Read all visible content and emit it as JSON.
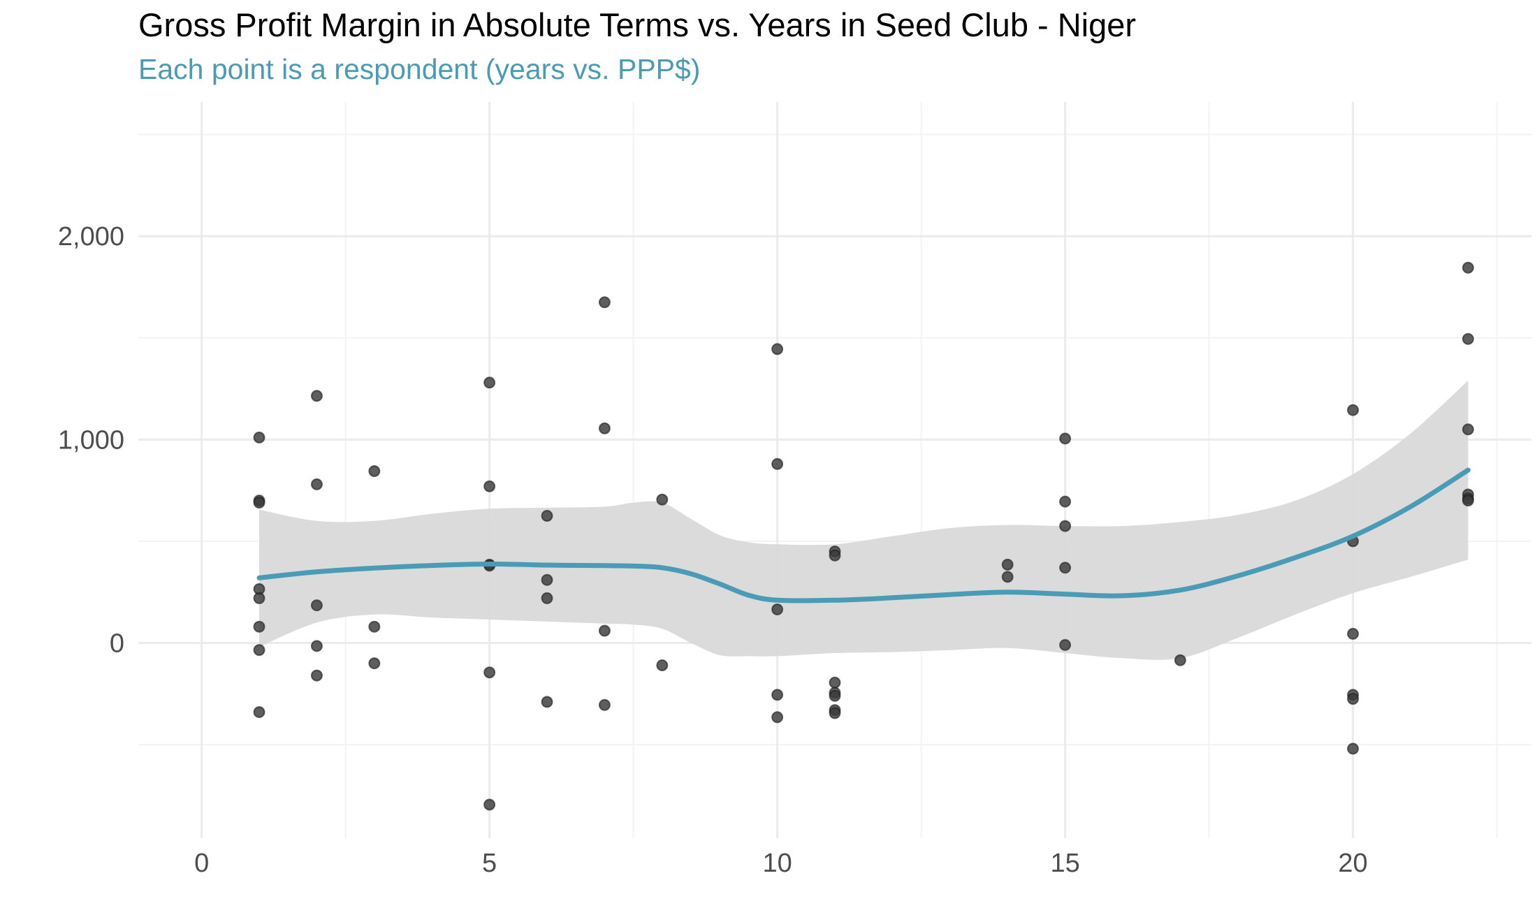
{
  "chart_data": {
    "type": "scatter",
    "title": "Gross Profit Margin in Absolute Terms vs. Years in Seed Club - Niger",
    "subtitle": "Each point is a respondent (years vs. PPP$)",
    "xlabel": "",
    "ylabel": "",
    "xlim": [
      -1.1,
      23.1
    ],
    "ylim": [
      -960,
      2660
    ],
    "x_ticks": [
      0,
      5,
      10,
      15,
      20
    ],
    "x_tick_labels": [
      "0",
      "5",
      "10",
      "15",
      "20"
    ],
    "y_ticks": [
      0,
      1000,
      2000
    ],
    "y_tick_labels": [
      "0",
      "1,000",
      "2,000"
    ],
    "grid": true,
    "legend": "none",
    "colors": {
      "subtitle": "#4a9bb5",
      "points": "#3a3a3a",
      "smooth_line": "#4a9bb5",
      "ribbon": "#d9d9d9",
      "grid_major": "#ebebeb",
      "grid_minor": "#f3f3f3"
    },
    "points": [
      {
        "x": 1,
        "y": 1010
      },
      {
        "x": 1,
        "y": 700
      },
      {
        "x": 1,
        "y": 690
      },
      {
        "x": 1,
        "y": 265
      },
      {
        "x": 1,
        "y": 220
      },
      {
        "x": 1,
        "y": 80
      },
      {
        "x": 1,
        "y": -35
      },
      {
        "x": 1,
        "y": -340
      },
      {
        "x": 2,
        "y": 1215
      },
      {
        "x": 2,
        "y": 780
      },
      {
        "x": 2,
        "y": 185
      },
      {
        "x": 2,
        "y": -15
      },
      {
        "x": 2,
        "y": -160
      },
      {
        "x": 3,
        "y": 845
      },
      {
        "x": 3,
        "y": 80
      },
      {
        "x": 3,
        "y": -100
      },
      {
        "x": 5,
        "y": 1280
      },
      {
        "x": 5,
        "y": 770
      },
      {
        "x": 5,
        "y": 385
      },
      {
        "x": 5,
        "y": 380
      },
      {
        "x": 5,
        "y": -145
      },
      {
        "x": 5,
        "y": -795
      },
      {
        "x": 6,
        "y": 625
      },
      {
        "x": 6,
        "y": 310
      },
      {
        "x": 6,
        "y": 220
      },
      {
        "x": 6,
        "y": -290
      },
      {
        "x": 7,
        "y": 1675
      },
      {
        "x": 7,
        "y": 1055
      },
      {
        "x": 7,
        "y": 60
      },
      {
        "x": 7,
        "y": -305
      },
      {
        "x": 8,
        "y": 705
      },
      {
        "x": 8,
        "y": -110
      },
      {
        "x": 10,
        "y": 1445
      },
      {
        "x": 10,
        "y": 880
      },
      {
        "x": 10,
        "y": 165
      },
      {
        "x": 10,
        "y": -255
      },
      {
        "x": 10,
        "y": -365
      },
      {
        "x": 11,
        "y": 450
      },
      {
        "x": 11,
        "y": 430
      },
      {
        "x": 11,
        "y": -195
      },
      {
        "x": 11,
        "y": -245
      },
      {
        "x": 11,
        "y": -260
      },
      {
        "x": 11,
        "y": -330
      },
      {
        "x": 11,
        "y": -345
      },
      {
        "x": 14,
        "y": 385
      },
      {
        "x": 14,
        "y": 325
      },
      {
        "x": 15,
        "y": 1005
      },
      {
        "x": 15,
        "y": 695
      },
      {
        "x": 15,
        "y": 575
      },
      {
        "x": 15,
        "y": 370
      },
      {
        "x": 15,
        "y": -10
      },
      {
        "x": 17,
        "y": -85
      },
      {
        "x": 20,
        "y": 1145
      },
      {
        "x": 20,
        "y": 500
      },
      {
        "x": 20,
        "y": 45
      },
      {
        "x": 20,
        "y": -255
      },
      {
        "x": 20,
        "y": -275
      },
      {
        "x": 20,
        "y": -520
      },
      {
        "x": 22,
        "y": 1845
      },
      {
        "x": 22,
        "y": 1495
      },
      {
        "x": 22,
        "y": 1050
      },
      {
        "x": 22,
        "y": 730
      },
      {
        "x": 22,
        "y": 710
      },
      {
        "x": 22,
        "y": 700
      }
    ],
    "smooth": {
      "x": [
        1,
        2,
        3,
        4,
        5,
        6,
        7,
        7.5,
        8,
        8.5,
        9,
        9.5,
        10,
        11,
        12,
        13,
        14,
        15,
        16,
        17,
        18,
        19,
        20,
        21,
        22
      ],
      "y": [
        320,
        350,
        368,
        381,
        388,
        383,
        380,
        378,
        370,
        340,
        290,
        235,
        210,
        210,
        222,
        238,
        250,
        240,
        232,
        260,
        330,
        420,
        525,
        670,
        850
      ],
      "upper": [
        655,
        600,
        600,
        635,
        660,
        665,
        670,
        690,
        690,
        610,
        530,
        495,
        485,
        485,
        525,
        565,
        580,
        575,
        575,
        595,
        630,
        700,
        830,
        1030,
        1290
      ],
      "lower": [
        -20,
        100,
        140,
        125,
        115,
        105,
        95,
        90,
        70,
        0,
        -60,
        -65,
        -65,
        -50,
        -45,
        -35,
        -25,
        -50,
        -75,
        -75,
        25,
        140,
        245,
        325,
        410
      ]
    }
  }
}
